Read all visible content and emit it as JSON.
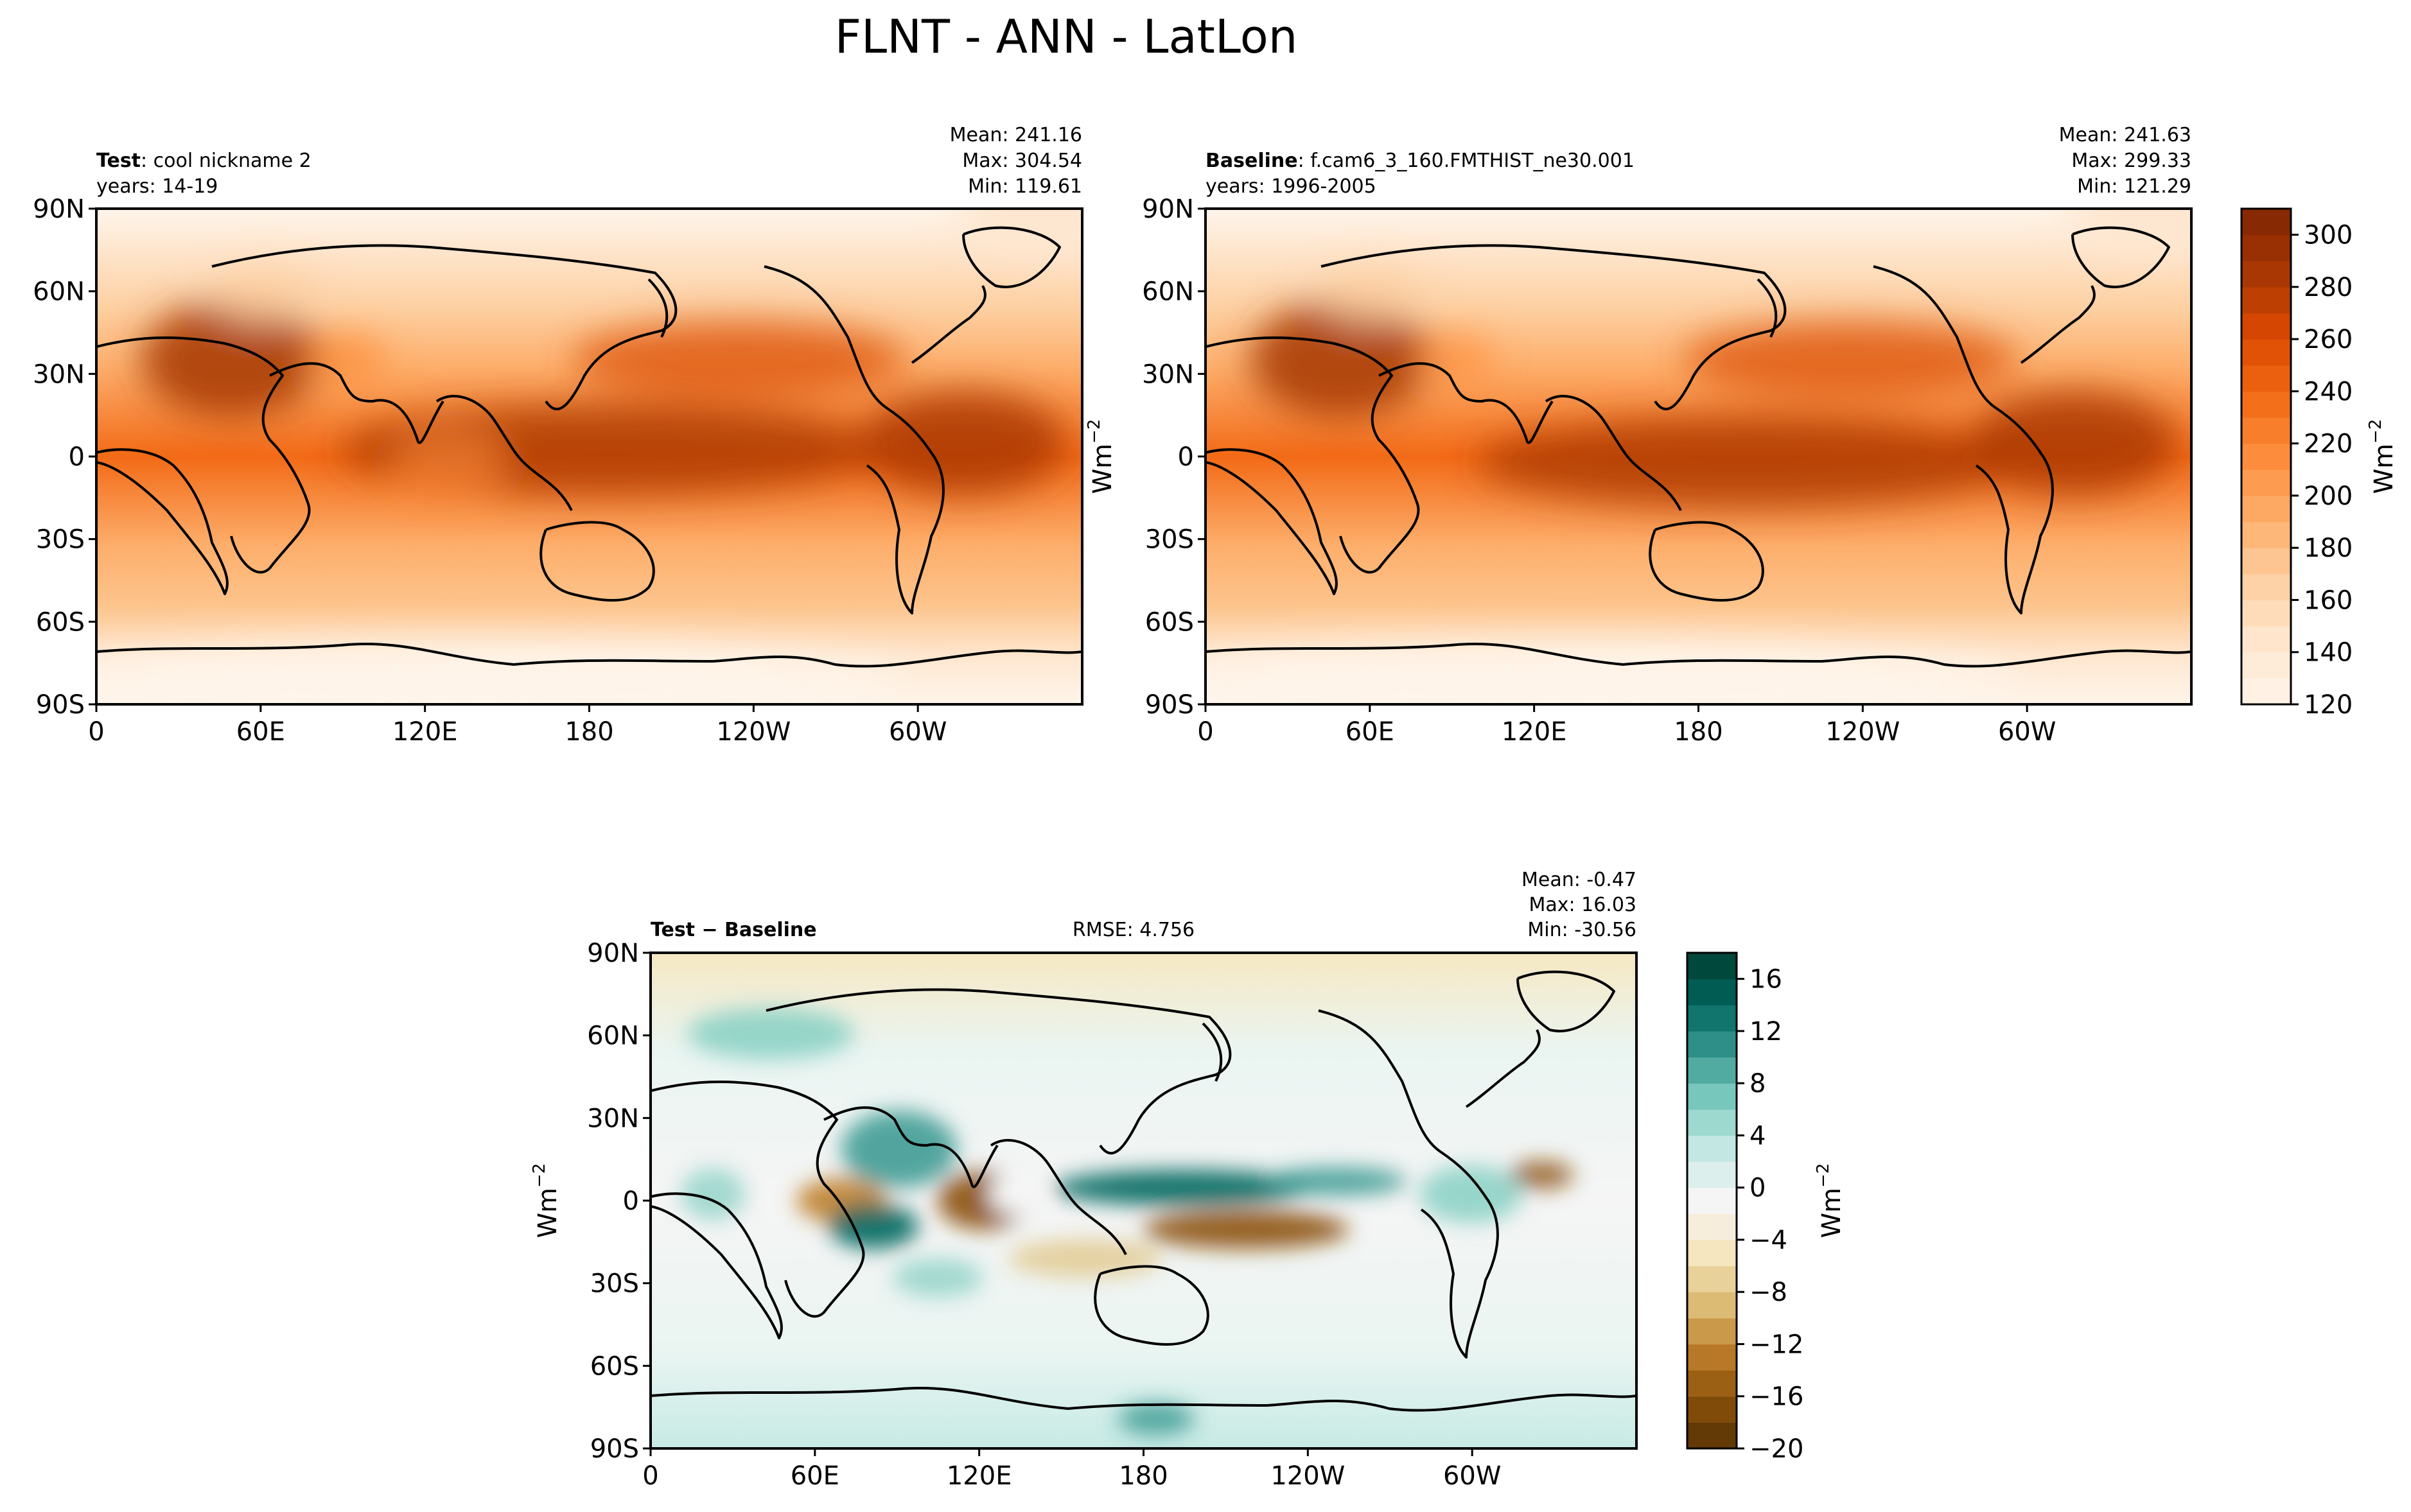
{
  "suptitle": "FLNT - ANN - LatLon",
  "colors": {
    "oranges": [
      "#fff5eb",
      "#fee6ce",
      "#fdd0a2",
      "#fdae6b",
      "#fd8d3c",
      "#f16913",
      "#d94801",
      "#a63603",
      "#7f2704"
    ],
    "brbg": [
      "#543005",
      "#8c510a",
      "#bf812d",
      "#dfc27d",
      "#f6e8c3",
      "#f5f5f5",
      "#c7eae5",
      "#80cdc1",
      "#35978f",
      "#01665e",
      "#003c30"
    ],
    "coastline": "#000000"
  },
  "panels": {
    "test": {
      "label_bold": "Test",
      "label_rest": ": cool nickname 2",
      "years": "years: 14-19",
      "mean": "Mean: 241.16",
      "max": "Max: 304.54",
      "min": "Min: 119.61"
    },
    "baseline": {
      "label_bold": "Baseline",
      "label_rest": ": f.cam6_3_160.FMTHIST_ne30.001",
      "years": "years: 1996-2005",
      "mean": "Mean: 241.63",
      "max": "Max: 299.33",
      "min": "Min: 121.29"
    },
    "diff": {
      "label_bold": "Test − Baseline",
      "rmse": "RMSE: 4.756",
      "mean": "Mean: -0.47",
      "max": "Max: 16.03",
      "min": "Min: -30.56"
    }
  },
  "axes": {
    "lat_ticks": [
      "90N",
      "60N",
      "30N",
      "0",
      "30S",
      "60S",
      "90S"
    ],
    "lon_ticks": [
      "0",
      "60E",
      "120E",
      "180",
      "120W",
      "60W"
    ]
  },
  "units": {
    "wm": "Wm",
    "exp": "−2"
  },
  "colorbars": {
    "abs": {
      "ticks": [
        "120",
        "140",
        "160",
        "180",
        "200",
        "220",
        "240",
        "260",
        "280",
        "300"
      ]
    },
    "diff": {
      "ticks": [
        "−20",
        "−16",
        "−12",
        "−8",
        "−4",
        "0",
        "4",
        "8",
        "12",
        "16"
      ]
    }
  },
  "chart_data": [
    {
      "type": "heatmap",
      "title": "Test: cool nickname 2",
      "subtitle": "years: 14-19",
      "x_ticks": [
        "0",
        "60E",
        "120E",
        "180",
        "120W",
        "60W"
      ],
      "y_ticks": [
        "90N",
        "60N",
        "30N",
        "0",
        "30S",
        "60S",
        "90S"
      ],
      "xlim": [
        0,
        360
      ],
      "ylim": [
        -90,
        90
      ],
      "colorbar_range": [
        120,
        310
      ],
      "colorbar_label": "Wm-2",
      "stats": {
        "mean": 241.16,
        "max": 304.54,
        "min": 119.61
      }
    },
    {
      "type": "heatmap",
      "title": "Baseline: f.cam6_3_160.FMTHIST_ne30.001",
      "subtitle": "years: 1996-2005",
      "x_ticks": [
        "0",
        "60E",
        "120E",
        "180",
        "120W",
        "60W"
      ],
      "y_ticks": [
        "90N",
        "60N",
        "30N",
        "0",
        "30S",
        "60S",
        "90S"
      ],
      "xlim": [
        0,
        360
      ],
      "ylim": [
        -90,
        90
      ],
      "colorbar_range": [
        120,
        310
      ],
      "colorbar_label": "Wm-2",
      "stats": {
        "mean": 241.63,
        "max": 299.33,
        "min": 121.29
      }
    },
    {
      "type": "heatmap",
      "title": "Test − Baseline",
      "x_ticks": [
        "0",
        "60E",
        "120E",
        "180",
        "120W",
        "60W"
      ],
      "y_ticks": [
        "90N",
        "60N",
        "30N",
        "0",
        "30S",
        "60S",
        "90S"
      ],
      "xlim": [
        0,
        360
      ],
      "ylim": [
        -90,
        90
      ],
      "colorbar_range": [
        -20,
        18
      ],
      "colorbar_label": "Wm-2",
      "stats": {
        "mean": -0.47,
        "max": 16.03,
        "min": -30.56,
        "rmse": 4.756
      }
    }
  ]
}
